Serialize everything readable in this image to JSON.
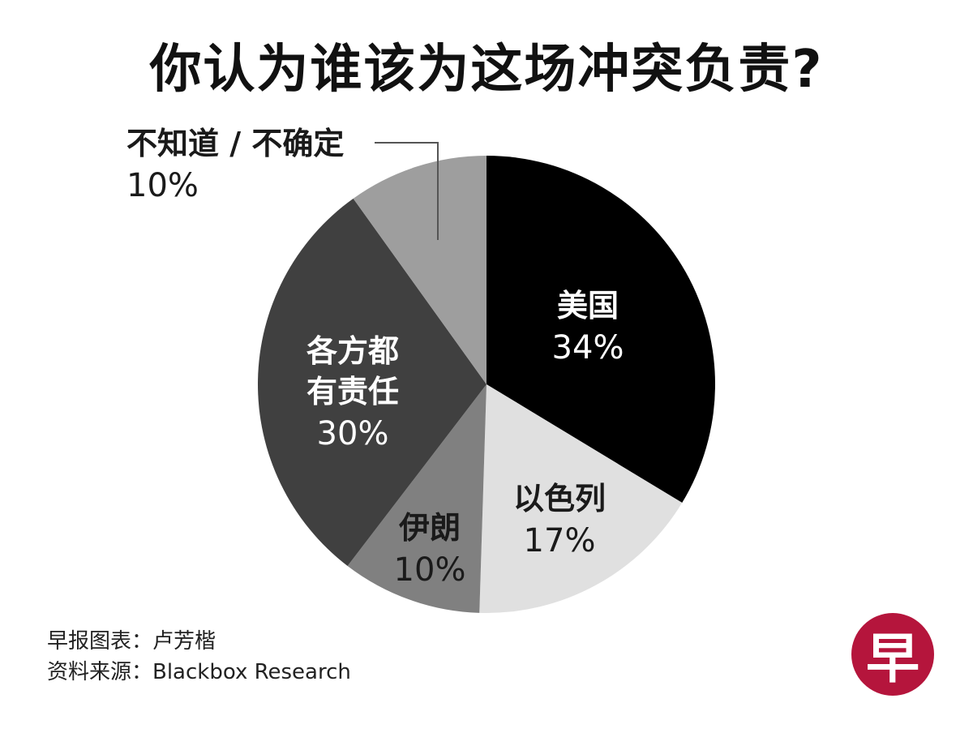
{
  "title": "你认为谁该为这场冲突负责?",
  "chart_data": {
    "type": "pie",
    "title": "你认为谁该为这场冲突负责?",
    "start": "12 o'clock",
    "direction": "clockwise",
    "legend": "none (labels on slices)",
    "slices": [
      {
        "label": "美国",
        "value": 34,
        "display": "34%",
        "color": "#000000",
        "text_color": "#ffffff"
      },
      {
        "label": "以色列",
        "value": 17,
        "display": "17%",
        "color": "#e0e0e0",
        "text_color": "#1a1a1a"
      },
      {
        "label": "伊朗",
        "value": 10,
        "display": "10%",
        "color": "#808080",
        "text_color": "#1a1a1a"
      },
      {
        "label": "各方都有责任",
        "value": 30,
        "display": "30%",
        "color": "#404040",
        "text_color": "#ffffff"
      },
      {
        "label": "不知道 / 不确定",
        "value": 10,
        "display": "10%",
        "color": "#9e9e9e",
        "text_color": "#1a1a1a"
      }
    ]
  },
  "labels": {
    "usa": {
      "name": "美国",
      "pct": "34%"
    },
    "israel": {
      "name": "以色列",
      "pct": "17%"
    },
    "iran": {
      "name": "伊朗",
      "pct": "10%"
    },
    "all_parties": {
      "name_line1": "各方都",
      "name_line2": "有责任",
      "pct": "30%"
    },
    "unknown": {
      "name": "不知道 / 不确定",
      "pct": "10%"
    }
  },
  "credits": {
    "chart_by": "早报图表：卢芳楷",
    "source": "资料来源：Blackbox Research"
  },
  "logo": {
    "glyph": "早",
    "color": "#b5153c"
  }
}
